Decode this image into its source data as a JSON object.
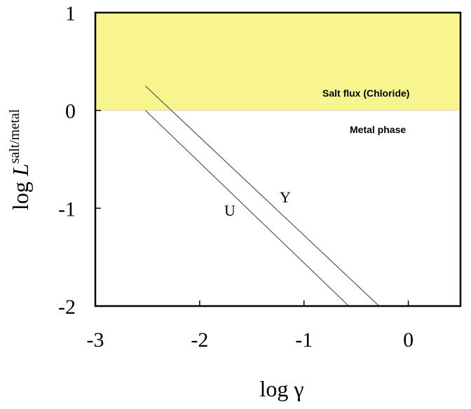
{
  "chart_data": {
    "type": "line",
    "xlabel": "log γ",
    "ylabel": {
      "prefix": "log ",
      "italic": "L",
      "superscript": "salt/metal"
    },
    "xlim": [
      -3,
      0.5
    ],
    "ylim": [
      -2,
      1
    ],
    "x_ticks": [
      -3,
      -2,
      -1,
      0
    ],
    "y_ticks": [
      -2,
      -1,
      0,
      1
    ],
    "x_tick_labels": [
      "-3",
      "-2",
      "-1",
      "0"
    ],
    "y_tick_labels": [
      "-2",
      "-1",
      "0",
      "1"
    ],
    "grid": false,
    "regions": [
      {
        "label": "Salt flux (Chloride)",
        "y_from": 0,
        "y_to": 1,
        "color": "#f8f58e"
      },
      {
        "label": "Metal phase",
        "y_from": -2,
        "y_to": 0,
        "color": "#ffffff"
      }
    ],
    "series": [
      {
        "name": "Y",
        "x": [
          -2.52,
          -0.28
        ],
        "y": [
          0.25,
          -2.0
        ],
        "color": "#555555"
      },
      {
        "name": "U",
        "x": [
          -2.52,
          -0.57
        ],
        "y": [
          0.0,
          -2.0
        ],
        "color": "#555555"
      }
    ]
  }
}
